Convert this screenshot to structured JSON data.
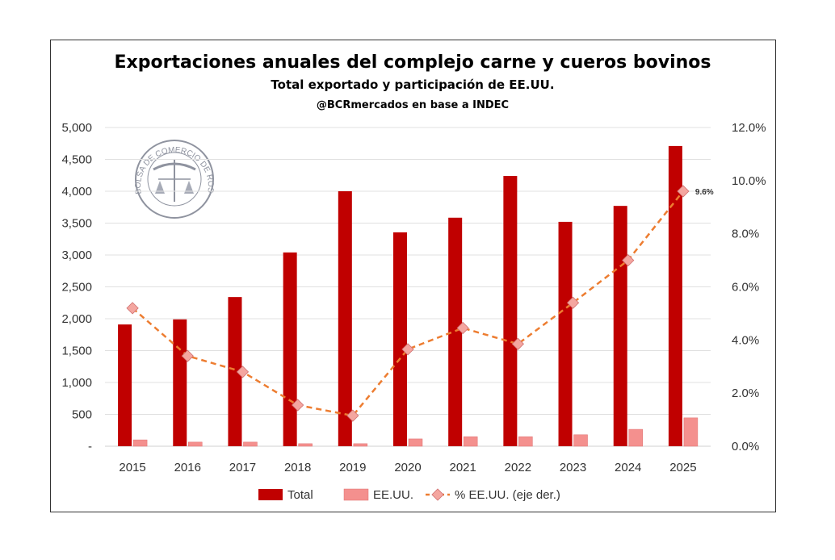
{
  "chart_data": {
    "type": "bar",
    "title": "Exportaciones anuales del complejo carne y cueros bovinos",
    "subtitle": "Total exportado y participación de EE.UU.",
    "source": "@BCRmercados  en base a INDEC",
    "logo_text": "BOLSA DE COMERCIO DE ROSARIO",
    "categories": [
      "2015",
      "2016",
      "2017",
      "2018",
      "2019",
      "2020",
      "2021",
      "2022",
      "2023",
      "2024",
      "2025"
    ],
    "y_left": {
      "range": [
        0,
        5000
      ],
      "ticks": [
        "-",
        "500",
        "1,000",
        "1,500",
        "2,000",
        "2,500",
        "3,000",
        "3,500",
        "4,000",
        "4,500",
        "5,000"
      ]
    },
    "y_right": {
      "range": [
        0,
        12
      ],
      "ticks": [
        "0.0%",
        "2.0%",
        "4.0%",
        "6.0%",
        "8.0%",
        "10.0%",
        "12.0%"
      ]
    },
    "grid": true,
    "legend_placement": "bottom",
    "series": [
      {
        "name": "Total",
        "type": "bar",
        "axis": "left",
        "color": "#c00000",
        "values": [
          1910,
          1990,
          2340,
          3040,
          4000,
          3355,
          3585,
          4240,
          3520,
          3770,
          4710
        ]
      },
      {
        "name": "EE.UU.",
        "type": "bar",
        "axis": "left",
        "color": "#f4908e",
        "values": [
          100,
          65,
          65,
          40,
          40,
          115,
          150,
          150,
          180,
          265,
          445
        ]
      },
      {
        "name": "% EE.UU. (eje der.)",
        "type": "line",
        "axis": "right",
        "color": "#ed7d31",
        "marker_color": "#f4a6a0",
        "values": [
          5.2,
          3.4,
          2.8,
          1.55,
          1.15,
          3.65,
          4.45,
          3.85,
          5.4,
          7.0,
          9.6
        ]
      }
    ],
    "annotations": [
      {
        "category": "2025",
        "series": "% EE.UU. (eje der.)",
        "text": "9.6%"
      }
    ]
  }
}
